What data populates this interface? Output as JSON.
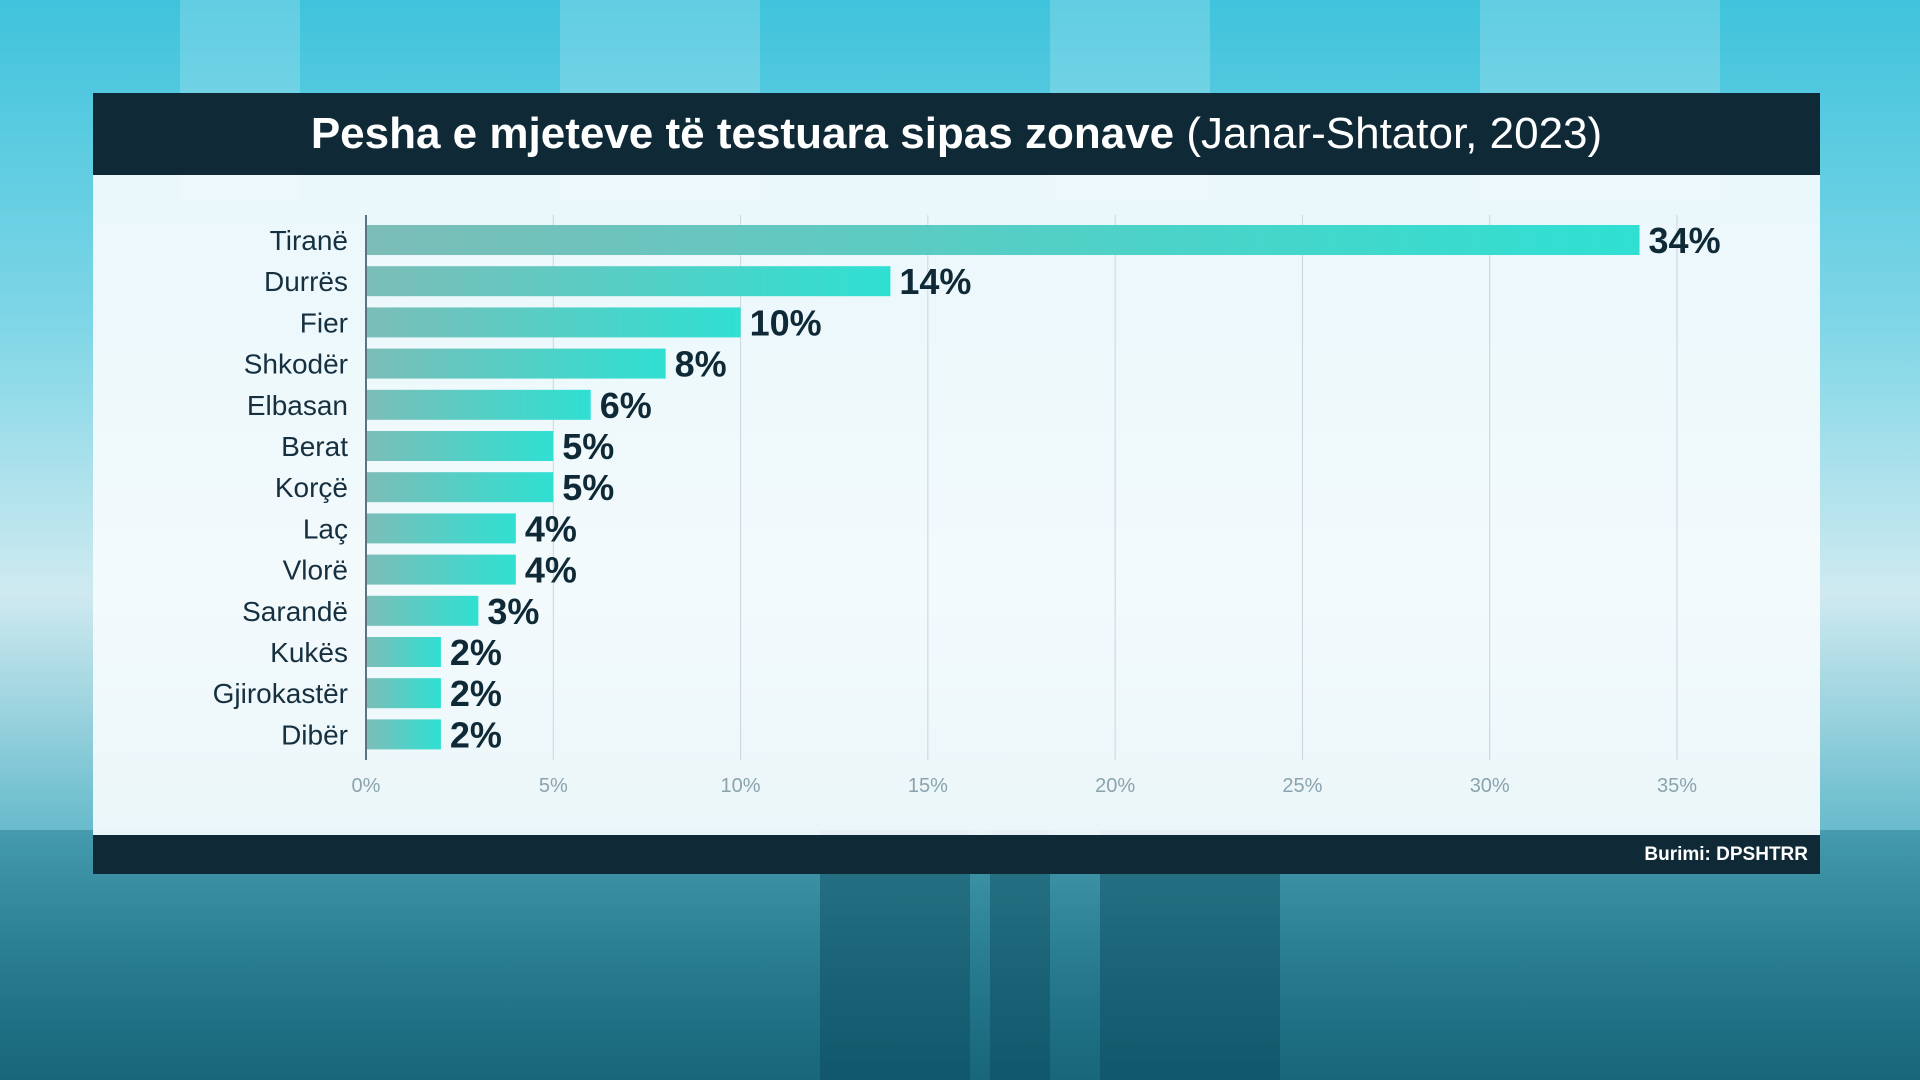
{
  "title": {
    "main": "Pesha e mjeteve të testuara sipas zonave",
    "sub": "(Janar-Shtator, 2023)"
  },
  "source": "Burimi: DPSHTRR",
  "colors": {
    "bar_start": "#7cbdb8",
    "bar_end": "#2fe0d2",
    "title_bg": "#0f2a36",
    "label": "#163040",
    "value_label": "#0f2a36",
    "grid": "#c9d5da",
    "tick": "#8aa3ad"
  },
  "chart_data": {
    "type": "bar",
    "orientation": "horizontal",
    "title": "Pesha e mjeteve të testuara sipas zonave (Janar-Shtator, 2023)",
    "categories": [
      "Tiranë",
      "Durrës",
      "Fier",
      "Shkodër",
      "Elbasan",
      "Berat",
      "Korçë",
      "Laç",
      "Vlorë",
      "Sarandë",
      "Kukës",
      "Gjirokastër",
      "Dibër"
    ],
    "values": [
      34,
      14,
      10,
      8,
      6,
      5,
      5,
      4,
      4,
      3,
      2,
      2,
      2
    ],
    "value_labels": [
      "34%",
      "14%",
      "10%",
      "8%",
      "6%",
      "5%",
      "5%",
      "4%",
      "4%",
      "3%",
      "2%",
      "2%",
      "2%"
    ],
    "xlim": [
      0,
      35
    ],
    "x_ticks": [
      0,
      5,
      10,
      15,
      20,
      25,
      30,
      35
    ],
    "x_tick_labels": [
      "0%",
      "5%",
      "10%",
      "15%",
      "20%",
      "25%",
      "30%",
      "35%"
    ],
    "xlabel": "",
    "ylabel": "",
    "grid": true,
    "legend": false
  }
}
